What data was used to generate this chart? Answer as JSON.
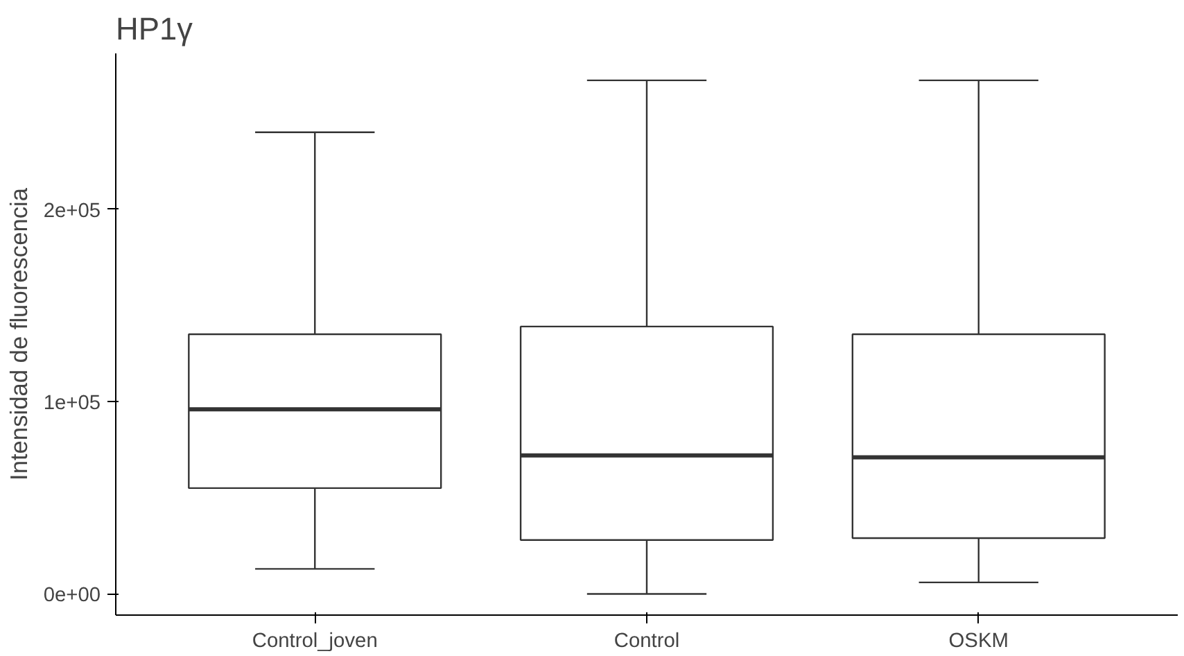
{
  "chart_data": {
    "type": "box",
    "title": "HP1γ",
    "ylabel": "Intensidad de fluorescencia",
    "categories": [
      "Control_joven",
      "Control",
      "OSKM"
    ],
    "boxes": [
      {
        "low": 13000,
        "q1": 55000,
        "median": 96000,
        "q3": 135000,
        "high": 240000
      },
      {
        "low": 0,
        "q1": 28000,
        "median": 72000,
        "q3": 139000,
        "high": 267000
      },
      {
        "low": 6000,
        "q1": 29000,
        "median": 71000,
        "q3": 135000,
        "high": 267000
      }
    ],
    "color": "#333333",
    "ylim": [
      -11000,
      281000
    ],
    "yticks": [
      {
        "value": 0,
        "label": "0e+00"
      },
      {
        "value": 100000,
        "label": "1e+05"
      },
      {
        "value": 200000,
        "label": "2e+05"
      }
    ],
    "grid": false
  }
}
